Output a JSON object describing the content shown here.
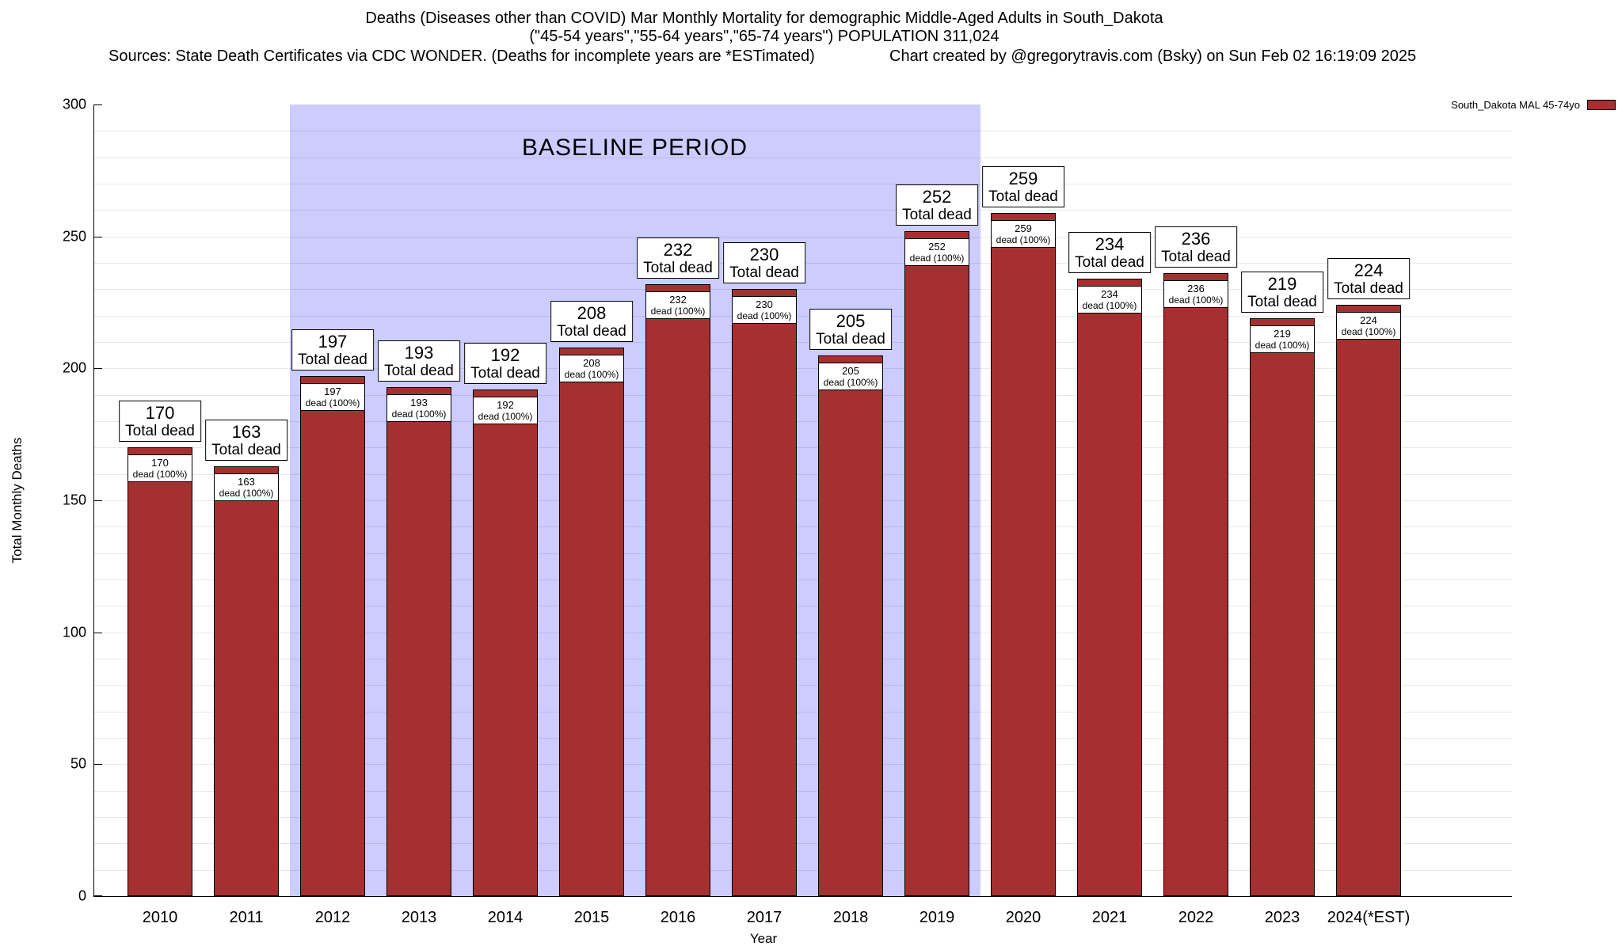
{
  "header": {
    "title_line1": "Deaths (Diseases other than COVID) Mar Monthly Mortality for demographic Middle-Aged Adults in South_Dakota",
    "title_line2": "(\"45-54 years\",\"55-64 years\",\"65-74 years\") POPULATION 311,024",
    "sources": "Sources: State Death Certificates via CDC WONDER. (Deaths for incomplete years are *ESTimated)",
    "credit": "Chart created by @gregorytravis.com (Bsky) on Sun Feb 02 16:19:09 2025"
  },
  "legend": {
    "label": "South_Dakota MAL 45-74yo",
    "color": "#a53030"
  },
  "chart_data": {
    "type": "bar",
    "title": "Deaths (Diseases other than COVID) Mar Monthly Mortality for demographic Middle-Aged Adults in South_Dakota",
    "subtitle": "(\"45-54 years\",\"55-64 years\",\"65-74 years\") POPULATION 311,024",
    "series_name": "South_Dakota MAL 45-74yo",
    "categories": [
      "2010",
      "2011",
      "2012",
      "2013",
      "2014",
      "2015",
      "2016",
      "2017",
      "2018",
      "2019",
      "2020",
      "2021",
      "2022",
      "2023",
      "2024(*EST)"
    ],
    "values": [
      170,
      163,
      197,
      193,
      192,
      208,
      232,
      230,
      205,
      252,
      259,
      234,
      236,
      219,
      224
    ],
    "bar_total_label_suffix": "Total dead",
    "bar_inner_label_suffix": "dead (100%)",
    "xlabel": "Year",
    "ylabel": "Total Monthly Deaths",
    "ylim": [
      0,
      300
    ],
    "yticks": [
      0,
      50,
      100,
      150,
      200,
      250,
      300
    ],
    "grid": true,
    "legend_position": "top-right",
    "bar_color": "#a53030",
    "baseline_region": {
      "label": "BASELINE PERIOD",
      "start_category": "2012",
      "end_category": "2019",
      "color": "#ccccff"
    }
  }
}
